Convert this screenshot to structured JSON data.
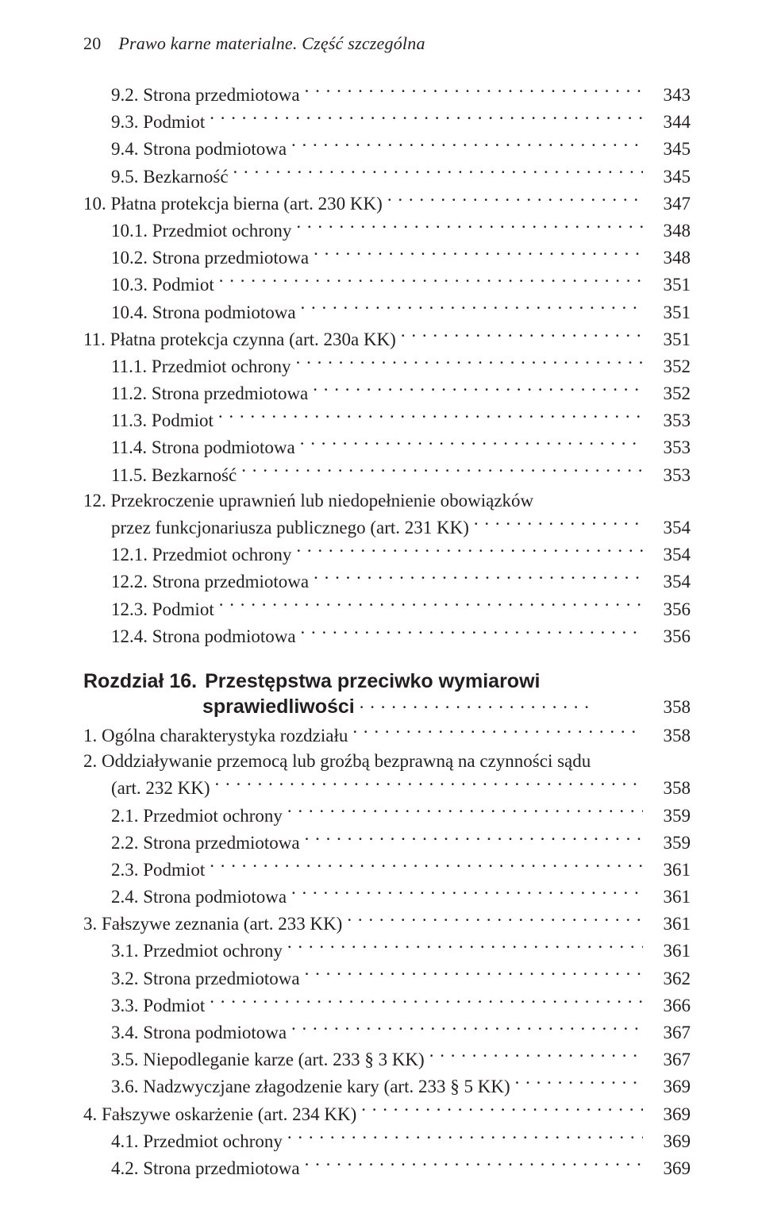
{
  "running_head": {
    "page_number": "20",
    "title": "Prawo karne materialne. Część szczególna"
  },
  "toc": [
    {
      "indent": 1,
      "label": "9.2. Strona przedmiotowa",
      "page": "343"
    },
    {
      "indent": 1,
      "label": "9.3. Podmiot",
      "page": "344"
    },
    {
      "indent": 1,
      "label": "9.4. Strona podmiotowa",
      "page": "345"
    },
    {
      "indent": 1,
      "label": "9.5. Bezkarność",
      "page": "345"
    },
    {
      "indent": 0,
      "label": "10. Płatna protekcja bierna (art. 230 KK)",
      "page": "347"
    },
    {
      "indent": 1,
      "label": "10.1. Przedmiot ochrony",
      "page": "348"
    },
    {
      "indent": 1,
      "label": "10.2. Strona przedmiotowa",
      "page": "348"
    },
    {
      "indent": 1,
      "label": "10.3. Podmiot",
      "page": "351"
    },
    {
      "indent": 1,
      "label": "10.4. Strona podmiotowa",
      "page": "351"
    },
    {
      "indent": 0,
      "label": "11. Płatna protekcja czynna (art. 230a KK)",
      "page": "351"
    },
    {
      "indent": 1,
      "label": "11.1. Przedmiot ochrony",
      "page": "352"
    },
    {
      "indent": 1,
      "label": "11.2. Strona przedmiotowa",
      "page": "352"
    },
    {
      "indent": 1,
      "label": "11.3. Podmiot",
      "page": "353"
    },
    {
      "indent": 1,
      "label": "11.4. Strona podmiotowa",
      "page": "353"
    },
    {
      "indent": 1,
      "label": "11.5. Bezkarność",
      "page": "353"
    },
    {
      "indent": 0,
      "multiline": true,
      "line1": "12. Przekroczenie uprawnień lub niedopełnienie obowiązków",
      "line2": "przez funkcjonariusza publicznego (art. 231 KK)",
      "line2_indent": 1,
      "page": "354"
    },
    {
      "indent": 1,
      "label": "12.1. Przedmiot ochrony",
      "page": "354"
    },
    {
      "indent": 1,
      "label": "12.2. Strona przedmiotowa",
      "page": "354"
    },
    {
      "indent": 1,
      "label": "12.3. Podmiot",
      "page": "356"
    },
    {
      "indent": 1,
      "label": "12.4. Strona podmiotowa",
      "page": "356"
    }
  ],
  "chapter": {
    "label": "Rozdział 16.",
    "title_line1": "Przestępstwa przeciwko wymiarowi",
    "title_line2": "sprawiedliwości",
    "page": "358"
  },
  "toc2": [
    {
      "indent": 0,
      "label": "1. Ogólna charakterystyka rozdziału",
      "page": "358"
    },
    {
      "indent": 0,
      "multiline": true,
      "line1": "2. Oddziaływanie przemocą lub groźbą bezprawną na czynności sądu",
      "line2": "(art. 232 KK)",
      "line2_indent": 1,
      "page": "358"
    },
    {
      "indent": 1,
      "label": "2.1. Przedmiot ochrony",
      "page": "359"
    },
    {
      "indent": 1,
      "label": "2.2. Strona przedmiotowa",
      "page": "359"
    },
    {
      "indent": 1,
      "label": "2.3. Podmiot",
      "page": "361"
    },
    {
      "indent": 1,
      "label": "2.4. Strona podmiotowa",
      "page": "361"
    },
    {
      "indent": 0,
      "label": "3. Fałszywe zeznania (art. 233 KK)",
      "page": "361"
    },
    {
      "indent": 1,
      "label": "3.1. Przedmiot ochrony",
      "page": "361"
    },
    {
      "indent": 1,
      "label": "3.2. Strona przedmiotowa",
      "page": "362"
    },
    {
      "indent": 1,
      "label": "3.3. Podmiot",
      "page": "366"
    },
    {
      "indent": 1,
      "label": "3.4. Strona podmiotowa",
      "page": "367"
    },
    {
      "indent": 1,
      "label": "3.5. Niepodleganie karze (art. 233 § 3 KK)",
      "page": "367"
    },
    {
      "indent": 1,
      "label": "3.6. Nadzwyczjane złagodzenie kary (art. 233 § 5 KK)",
      "page": "369"
    },
    {
      "indent": 0,
      "label": "4. Fałszywe oskarżenie (art. 234 KK)",
      "page": "369"
    },
    {
      "indent": 1,
      "label": "4.1. Przedmiot ochrony",
      "page": "369"
    },
    {
      "indent": 1,
      "label": "4.2. Strona przedmiotowa",
      "page": "369"
    }
  ]
}
